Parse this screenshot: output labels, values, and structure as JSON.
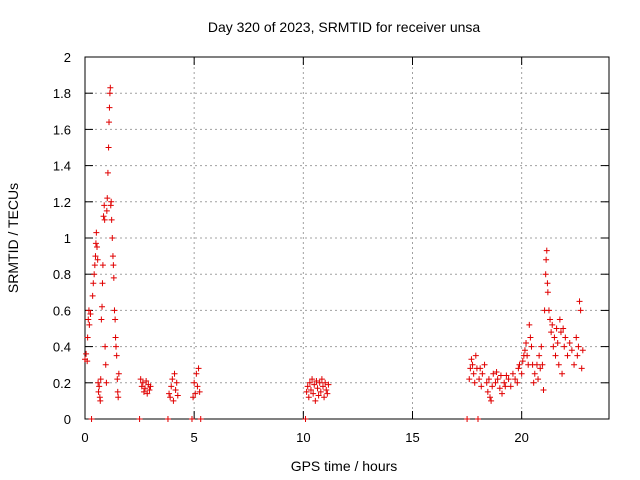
{
  "chart_data": {
    "type": "scatter",
    "title": "Day 320 of 2023, SRMTID for receiver unsa",
    "xlabel": "GPS time / hours",
    "ylabel": "SRMTID / TECUs",
    "xlim": [
      0,
      24
    ],
    "ylim": [
      0,
      2
    ],
    "x_ticks": [
      0,
      5,
      10,
      15,
      20
    ],
    "x_tick_labels": [
      "0",
      "5",
      "10",
      "15",
      "20"
    ],
    "y_ticks": [
      0,
      0.2,
      0.4,
      0.6,
      0.8,
      1.0,
      1.2,
      1.4,
      1.6,
      1.8,
      2.0
    ],
    "y_tick_labels": [
      "0",
      "0.2",
      "0.4",
      "0.6",
      "0.8",
      "1",
      "1.2",
      "1.4",
      "1.6",
      "1.8",
      "2"
    ],
    "grid": true,
    "marker": "+",
    "series": [
      {
        "name": "SRMTID",
        "color": "#e00000",
        "points": [
          [
            0.0,
            0.33
          ],
          [
            0.05,
            0.36
          ],
          [
            0.1,
            0.32
          ],
          [
            0.12,
            0.45
          ],
          [
            0.15,
            0.55
          ],
          [
            0.18,
            0.6
          ],
          [
            0.2,
            0.52
          ],
          [
            0.25,
            0.58
          ],
          [
            0.3,
            0.0
          ],
          [
            0.35,
            0.68
          ],
          [
            0.38,
            0.75
          ],
          [
            0.42,
            0.8
          ],
          [
            0.45,
            0.85
          ],
          [
            0.48,
            0.9
          ],
          [
            0.5,
            0.97
          ],
          [
            0.52,
            1.03
          ],
          [
            0.55,
            0.95
          ],
          [
            0.58,
            0.88
          ],
          [
            0.6,
            0.2
          ],
          [
            0.62,
            0.15
          ],
          [
            0.65,
            0.18
          ],
          [
            0.68,
            0.12
          ],
          [
            0.7,
            0.1
          ],
          [
            0.72,
            0.22
          ],
          [
            0.75,
            0.55
          ],
          [
            0.78,
            0.62
          ],
          [
            0.8,
            0.75
          ],
          [
            0.82,
            0.85
          ],
          [
            0.85,
            1.12
          ],
          [
            0.88,
            1.18
          ],
          [
            0.9,
            1.1
          ],
          [
            0.92,
            0.4
          ],
          [
            0.95,
            0.3
          ],
          [
            0.98,
            0.2
          ],
          [
            1.0,
            1.15
          ],
          [
            1.02,
            1.22
          ],
          [
            1.05,
            1.36
          ],
          [
            1.08,
            1.5
          ],
          [
            1.1,
            1.64
          ],
          [
            1.12,
            1.72
          ],
          [
            1.14,
            1.8
          ],
          [
            1.16,
            1.83
          ],
          [
            1.18,
            1.18
          ],
          [
            1.2,
            1.2
          ],
          [
            1.22,
            1.1
          ],
          [
            1.25,
            1.0
          ],
          [
            1.28,
            0.9
          ],
          [
            1.3,
            0.85
          ],
          [
            1.32,
            0.78
          ],
          [
            1.35,
            0.6
          ],
          [
            1.38,
            0.55
          ],
          [
            1.4,
            0.45
          ],
          [
            1.42,
            0.4
          ],
          [
            1.45,
            0.35
          ],
          [
            1.48,
            0.22
          ],
          [
            1.5,
            0.15
          ],
          [
            1.52,
            0.12
          ],
          [
            1.55,
            0.25
          ],
          [
            2.5,
            0.0
          ],
          [
            2.55,
            0.22
          ],
          [
            2.6,
            0.18
          ],
          [
            2.65,
            0.2
          ],
          [
            2.7,
            0.15
          ],
          [
            2.75,
            0.17
          ],
          [
            2.8,
            0.21
          ],
          [
            2.85,
            0.14
          ],
          [
            2.9,
            0.19
          ],
          [
            2.95,
            0.16
          ],
          [
            3.0,
            0.18
          ],
          [
            3.8,
            0.0
          ],
          [
            3.85,
            0.14
          ],
          [
            3.9,
            0.12
          ],
          [
            3.95,
            0.18
          ],
          [
            4.0,
            0.22
          ],
          [
            4.05,
            0.1
          ],
          [
            4.1,
            0.25
          ],
          [
            4.15,
            0.16
          ],
          [
            4.2,
            0.2
          ],
          [
            4.25,
            0.13
          ],
          [
            4.9,
            0.0
          ],
          [
            4.95,
            0.12
          ],
          [
            5.0,
            0.2
          ],
          [
            5.05,
            0.14
          ],
          [
            5.1,
            0.25
          ],
          [
            5.15,
            0.18
          ],
          [
            5.2,
            0.28
          ],
          [
            5.25,
            0.15
          ],
          [
            5.3,
            0.0
          ],
          [
            10.1,
            0.0
          ],
          [
            10.15,
            0.15
          ],
          [
            10.2,
            0.18
          ],
          [
            10.25,
            0.12
          ],
          [
            10.3,
            0.2
          ],
          [
            10.35,
            0.16
          ],
          [
            10.4,
            0.22
          ],
          [
            10.45,
            0.14
          ],
          [
            10.5,
            0.19
          ],
          [
            10.55,
            0.1
          ],
          [
            10.6,
            0.21
          ],
          [
            10.65,
            0.17
          ],
          [
            10.7,
            0.13
          ],
          [
            10.75,
            0.2
          ],
          [
            10.8,
            0.15
          ],
          [
            10.85,
            0.22
          ],
          [
            10.9,
            0.18
          ],
          [
            10.95,
            0.12
          ],
          [
            11.0,
            0.2
          ],
          [
            11.05,
            0.16
          ],
          [
            11.1,
            0.14
          ],
          [
            11.15,
            0.19
          ],
          [
            17.5,
            0.0
          ],
          [
            17.6,
            0.22
          ],
          [
            17.65,
            0.28
          ],
          [
            17.7,
            0.33
          ],
          [
            17.75,
            0.3
          ],
          [
            17.8,
            0.25
          ],
          [
            17.85,
            0.2
          ],
          [
            17.9,
            0.35
          ],
          [
            17.95,
            0.28
          ],
          [
            18.0,
            0.0
          ],
          [
            18.05,
            0.22
          ],
          [
            18.1,
            0.28
          ],
          [
            18.15,
            0.18
          ],
          [
            18.2,
            0.25
          ],
          [
            18.3,
            0.3
          ],
          [
            18.4,
            0.2
          ],
          [
            18.45,
            0.15
          ],
          [
            18.5,
            0.22
          ],
          [
            18.55,
            0.12
          ],
          [
            18.6,
            0.1
          ],
          [
            18.65,
            0.18
          ],
          [
            18.7,
            0.25
          ],
          [
            18.8,
            0.2
          ],
          [
            18.85,
            0.26
          ],
          [
            18.9,
            0.22
          ],
          [
            19.0,
            0.17
          ],
          [
            19.05,
            0.24
          ],
          [
            19.1,
            0.14
          ],
          [
            19.2,
            0.2
          ],
          [
            19.25,
            0.18
          ],
          [
            19.3,
            0.24
          ],
          [
            19.4,
            0.22
          ],
          [
            19.5,
            0.18
          ],
          [
            19.6,
            0.25
          ],
          [
            19.7,
            0.22
          ],
          [
            19.8,
            0.2
          ],
          [
            19.85,
            0.28
          ],
          [
            19.9,
            0.3
          ],
          [
            20.0,
            0.25
          ],
          [
            20.05,
            0.32
          ],
          [
            20.1,
            0.35
          ],
          [
            20.15,
            0.38
          ],
          [
            20.2,
            0.42
          ],
          [
            20.25,
            0.35
          ],
          [
            20.3,
            0.3
          ],
          [
            20.35,
            0.52
          ],
          [
            20.4,
            0.45
          ],
          [
            20.45,
            0.4
          ],
          [
            20.5,
            0.3
          ],
          [
            20.55,
            0.2
          ],
          [
            20.6,
            0.25
          ],
          [
            20.7,
            0.3
          ],
          [
            20.75,
            0.22
          ],
          [
            20.8,
            0.35
          ],
          [
            20.85,
            0.28
          ],
          [
            20.9,
            0.4
          ],
          [
            20.95,
            0.3
          ],
          [
            21.0,
            0.16
          ],
          [
            21.05,
            0.6
          ],
          [
            21.1,
            0.8
          ],
          [
            21.12,
            0.88
          ],
          [
            21.15,
            0.93
          ],
          [
            21.18,
            0.75
          ],
          [
            21.2,
            0.7
          ],
          [
            21.25,
            0.6
          ],
          [
            21.3,
            0.55
          ],
          [
            21.35,
            0.48
          ],
          [
            21.4,
            0.52
          ],
          [
            21.45,
            0.4
          ],
          [
            21.5,
            0.45
          ],
          [
            21.55,
            0.35
          ],
          [
            21.6,
            0.5
          ],
          [
            21.65,
            0.42
          ],
          [
            21.7,
            0.3
          ],
          [
            21.75,
            0.55
          ],
          [
            21.8,
            0.48
          ],
          [
            21.85,
            0.25
          ],
          [
            21.9,
            0.5
          ],
          [
            21.95,
            0.4
          ],
          [
            22.0,
            0.45
          ],
          [
            22.1,
            0.35
          ],
          [
            22.2,
            0.42
          ],
          [
            22.3,
            0.38
          ],
          [
            22.4,
            0.3
          ],
          [
            22.5,
            0.45
          ],
          [
            22.55,
            0.35
          ],
          [
            22.6,
            0.4
          ],
          [
            22.65,
            0.65
          ],
          [
            22.7,
            0.6
          ],
          [
            22.75,
            0.28
          ],
          [
            22.8,
            0.38
          ]
        ]
      }
    ]
  }
}
